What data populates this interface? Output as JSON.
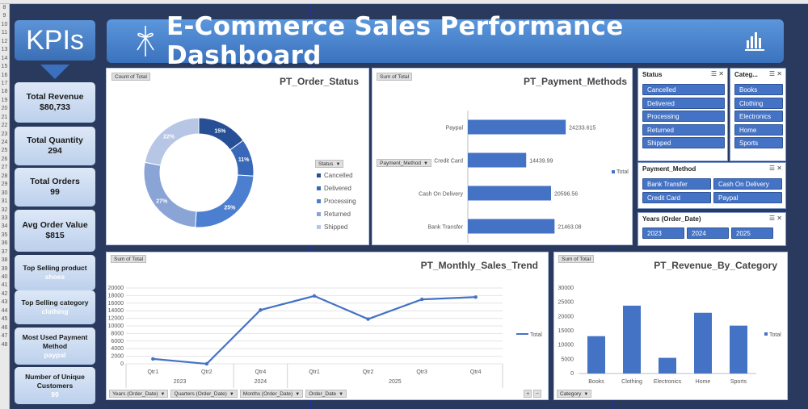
{
  "title": "E-Commerce Sales Performance Dashboard",
  "kpi_header": "KPIs",
  "kpis": [
    {
      "label": "Total Revenue",
      "value": "$80,733"
    },
    {
      "label": "Total Quantity",
      "value": "294"
    },
    {
      "label": "Total Orders",
      "value": "99"
    },
    {
      "label": "Avg Order Value",
      "value": "$815"
    },
    {
      "label": "Top Selling product",
      "value": "shoes"
    },
    {
      "label": "Top Selling category",
      "value": "clothing"
    },
    {
      "label": "Most Used Payment Method",
      "value": "paypal"
    },
    {
      "label": "Number of Unique Customers",
      "value": "99"
    }
  ],
  "row_numbers": [
    "8",
    "9",
    "10",
    "11",
    "12",
    "13",
    "14",
    "15",
    "16",
    "17",
    "18",
    "19",
    "20",
    "21",
    "22",
    "23",
    "24",
    "25",
    "26",
    "27",
    "28",
    "29",
    "30",
    "31",
    "32",
    "33",
    "34",
    "35",
    "36",
    "37",
    "38",
    "39",
    "40",
    "41",
    "42",
    "43",
    "44",
    "45",
    "46",
    "47",
    "48"
  ],
  "colors": {
    "accent": "#4472c4",
    "title_bg": "#3b72bd",
    "sheet_bg": "#2a3a5e"
  },
  "order_status": {
    "title": "PT_Order_Status",
    "field_button": "Count of Total",
    "legend_button": "Status",
    "chart_data": {
      "type": "pie",
      "categories": [
        "Cancelled",
        "Delivered",
        "Processing",
        "Returned",
        "Shipped"
      ],
      "values": [
        15,
        11,
        25,
        27,
        22
      ],
      "labels": [
        "15%",
        "11%",
        "25%",
        "27%",
        "22%"
      ],
      "colors": [
        "#264f96",
        "#3a68b8",
        "#4d7fd0",
        "#8aa4d6",
        "#b7c6e5"
      ]
    }
  },
  "payment_methods": {
    "title": "PT_Payment_Methods",
    "field_button": "Sum of Total",
    "axis_button": "Payment_Method",
    "legend": "Total",
    "chart_data": {
      "type": "bar",
      "orientation": "horizontal",
      "categories": [
        "Paypal",
        "Credit Card",
        "Cash On Delivery",
        "Bank Transfer"
      ],
      "values": [
        24233.615,
        14439.99,
        20596.56,
        21463.08
      ],
      "value_labels": [
        "24233.615",
        "14439.99",
        "20596.56",
        "21463.08"
      ],
      "xticks": [
        "0",
        "10000",
        "20000",
        "30000"
      ],
      "xlim": [
        0,
        30000
      ]
    }
  },
  "monthly_trend": {
    "title": "PT_Monthly_Sales_Trend",
    "field_button": "Sum of Total",
    "legend": "Total",
    "filter_buttons": [
      "Years (Order_Date)",
      "Quarters (Order_Date)",
      "Months (Order_Date)",
      "Order_Date"
    ],
    "chart_data": {
      "type": "line",
      "categories": [
        "Qtr1",
        "Qtr2",
        "Qtr4",
        "Qtr1",
        "Qtr2",
        "Qtr3",
        "Qtr4"
      ],
      "groups": [
        {
          "label": "2023",
          "span": 2
        },
        {
          "label": "2024",
          "span": 1
        },
        {
          "label": "2025",
          "span": 4
        }
      ],
      "values": [
        1300,
        0,
        14200,
        17900,
        11800,
        17000,
        17600
      ],
      "yticks": [
        "0",
        "2000",
        "4000",
        "6000",
        "8000",
        "10000",
        "12000",
        "14000",
        "16000",
        "18000",
        "20000"
      ],
      "ylim": [
        0,
        20000
      ]
    }
  },
  "revenue_category": {
    "title": "PT_Revenue_By_Category",
    "field_button": "Sum of Total",
    "axis_button": "Category",
    "legend": "Total",
    "chart_data": {
      "type": "bar",
      "categories": [
        "Books",
        "Clothing",
        "Electronics",
        "Home",
        "Sports"
      ],
      "values": [
        13100,
        23800,
        5500,
        21300,
        16800
      ],
      "yticks": [
        "0",
        "5000",
        "10000",
        "15000",
        "20000",
        "25000",
        "30000"
      ],
      "ylim": [
        0,
        30000
      ]
    }
  },
  "slicers": {
    "status": {
      "header": "Status",
      "items": [
        "Cancelled",
        "Delivered",
        "Processing",
        "Returned",
        "Shipped"
      ]
    },
    "category": {
      "header": "Categ...",
      "items": [
        "Books",
        "Clothing",
        "Electronics",
        "Home",
        "Sports"
      ]
    },
    "payment": {
      "header": "Payment_Method",
      "items": [
        "Bank Transfer",
        "Cash On Delivery",
        "Credit Card",
        "Paypal"
      ]
    },
    "years": {
      "header": "Years (Order_Date)",
      "items": [
        "2023",
        "2024",
        "2025"
      ]
    }
  }
}
